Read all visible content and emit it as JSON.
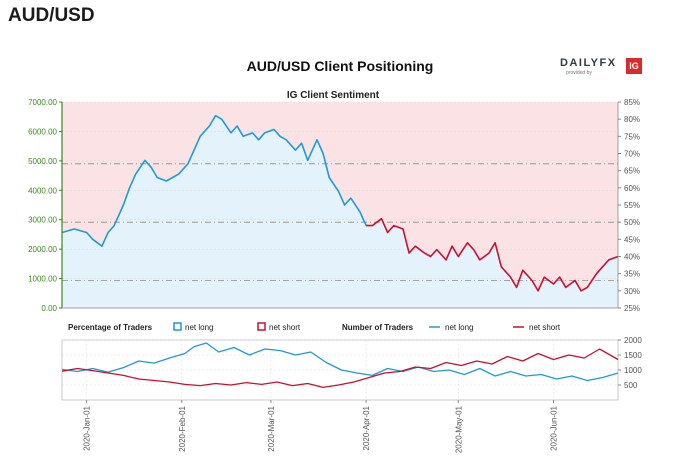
{
  "header": {
    "title": "AUD/USD"
  },
  "card": {
    "title": "AUD/USD Client Positioning",
    "brand": {
      "word": "DAILYFX",
      "sub": "provided by",
      "ig": "IG"
    }
  },
  "legend": {
    "pct_title": "Percentage of Traders",
    "net_long": "net long",
    "net_short": "net short",
    "num_title": "Number of Traders"
  },
  "colors": {
    "long": "#1f9ad6",
    "short": "#c8102e",
    "long_fill": "#e4f3fb",
    "short_fill": "#fbe2e4",
    "price_axis": "#3a8a1e"
  },
  "chart_data": [
    {
      "type": "line",
      "title": "IG Client Sentiment",
      "x_start": "2019-12-24",
      "x_end": "2020-06-22",
      "left_axis": {
        "ylim": [
          0,
          7000
        ],
        "ticks": [
          "0.00",
          "1000.00",
          "2000.00",
          "3000.00",
          "4000.00",
          "5000.00",
          "6000.00",
          "7000.00"
        ]
      },
      "right_axis": {
        "ylim": [
          25,
          85
        ],
        "ticks": [
          "25%",
          "30%",
          "35%",
          "40%",
          "45%",
          "50%",
          "55%",
          "60%",
          "65%",
          "70%",
          "75%",
          "80%",
          "85%"
        ]
      },
      "reference_lines": [
        33,
        50,
        67
      ],
      "series": [
        {
          "name": "net long",
          "color": "#1f9ad6",
          "points": [
            [
              "2019-12-24",
              47
            ],
            [
              "2019-12-28",
              48
            ],
            [
              "2020-01-01",
              47
            ],
            [
              "2020-01-03",
              45
            ],
            [
              "2020-01-06",
              43
            ],
            [
              "2020-01-08",
              47
            ],
            [
              "2020-01-10",
              49
            ],
            [
              "2020-01-13",
              55
            ],
            [
              "2020-01-15",
              60
            ],
            [
              "2020-01-17",
              64
            ],
            [
              "2020-01-20",
              68
            ],
            [
              "2020-01-22",
              66
            ],
            [
              "2020-01-24",
              63
            ],
            [
              "2020-01-27",
              62
            ],
            [
              "2020-01-29",
              63
            ],
            [
              "2020-01-31",
              64
            ],
            [
              "2020-02-03",
              67
            ],
            [
              "2020-02-05",
              71
            ],
            [
              "2020-02-07",
              75
            ],
            [
              "2020-02-10",
              78
            ],
            [
              "2020-02-12",
              81
            ],
            [
              "2020-02-14",
              80
            ],
            [
              "2020-02-17",
              76
            ],
            [
              "2020-02-19",
              78
            ],
            [
              "2020-02-21",
              75
            ],
            [
              "2020-02-24",
              76
            ],
            [
              "2020-02-26",
              74
            ],
            [
              "2020-02-28",
              76
            ],
            [
              "2020-03-02",
              77
            ],
            [
              "2020-03-04",
              75
            ],
            [
              "2020-03-06",
              74
            ],
            [
              "2020-03-09",
              71
            ],
            [
              "2020-03-11",
              73
            ],
            [
              "2020-03-13",
              68
            ],
            [
              "2020-03-16",
              74
            ],
            [
              "2020-03-18",
              70
            ],
            [
              "2020-03-20",
              63
            ],
            [
              "2020-03-23",
              59
            ],
            [
              "2020-03-25",
              55
            ],
            [
              "2020-03-27",
              57
            ],
            [
              "2020-03-30",
              53
            ],
            [
              "2020-04-01",
              49
            ]
          ]
        },
        {
          "name": "net short",
          "color": "#c8102e",
          "points": [
            [
              "2020-04-01",
              49
            ],
            [
              "2020-04-03",
              49
            ],
            [
              "2020-04-06",
              51
            ],
            [
              "2020-04-08",
              47
            ],
            [
              "2020-04-10",
              49
            ],
            [
              "2020-04-13",
              48
            ],
            [
              "2020-04-15",
              41
            ],
            [
              "2020-04-17",
              43
            ],
            [
              "2020-04-20",
              41
            ],
            [
              "2020-04-22",
              40
            ],
            [
              "2020-04-24",
              42
            ],
            [
              "2020-04-27",
              39
            ],
            [
              "2020-04-29",
              43
            ],
            [
              "2020-05-01",
              40
            ],
            [
              "2020-05-04",
              44
            ],
            [
              "2020-05-06",
              42
            ],
            [
              "2020-05-08",
              39
            ],
            [
              "2020-05-11",
              41
            ],
            [
              "2020-05-13",
              44
            ],
            [
              "2020-05-15",
              37
            ],
            [
              "2020-05-18",
              34
            ],
            [
              "2020-05-20",
              31
            ],
            [
              "2020-05-22",
              36
            ],
            [
              "2020-05-25",
              33
            ],
            [
              "2020-05-27",
              30
            ],
            [
              "2020-05-29",
              34
            ],
            [
              "2020-06-01",
              32
            ],
            [
              "2020-06-03",
              34
            ],
            [
              "2020-06-05",
              31
            ],
            [
              "2020-06-08",
              33
            ],
            [
              "2020-06-10",
              30
            ],
            [
              "2020-06-12",
              31
            ],
            [
              "2020-06-15",
              35
            ],
            [
              "2020-06-17",
              37
            ],
            [
              "2020-06-19",
              39
            ],
            [
              "2020-06-22",
              40
            ]
          ]
        }
      ]
    },
    {
      "type": "line",
      "title": "Number of Traders",
      "x_start": "2019-12-24",
      "x_end": "2020-06-22",
      "y_axis": {
        "ylim": [
          0,
          2000
        ],
        "ticks": [
          "500",
          "1000",
          "1500",
          "2000"
        ]
      },
      "x_ticks": [
        "2020-Jan-01",
        "2020-Feb-01",
        "2020-Mar-01",
        "2020-Apr-01",
        "2020-May-01",
        "2020-Jun-01"
      ],
      "series": [
        {
          "name": "net long",
          "color": "#1f9ad6",
          "points": [
            [
              "2019-12-24",
              1020
            ],
            [
              "2019-12-29",
              950
            ],
            [
              "2020-01-03",
              1050
            ],
            [
              "2020-01-08",
              930
            ],
            [
              "2020-01-13",
              1080
            ],
            [
              "2020-01-18",
              1300
            ],
            [
              "2020-01-23",
              1230
            ],
            [
              "2020-01-28",
              1400
            ],
            [
              "2020-02-02",
              1550
            ],
            [
              "2020-02-05",
              1780
            ],
            [
              "2020-02-09",
              1900
            ],
            [
              "2020-02-13",
              1600
            ],
            [
              "2020-02-18",
              1750
            ],
            [
              "2020-02-23",
              1500
            ],
            [
              "2020-02-28",
              1700
            ],
            [
              "2020-03-04",
              1650
            ],
            [
              "2020-03-09",
              1500
            ],
            [
              "2020-03-14",
              1600
            ],
            [
              "2020-03-19",
              1250
            ],
            [
              "2020-03-24",
              1000
            ],
            [
              "2020-03-29",
              900
            ],
            [
              "2020-04-03",
              820
            ],
            [
              "2020-04-08",
              1050
            ],
            [
              "2020-04-13",
              950
            ],
            [
              "2020-04-18",
              1100
            ],
            [
              "2020-04-23",
              950
            ],
            [
              "2020-04-28",
              1000
            ],
            [
              "2020-05-03",
              850
            ],
            [
              "2020-05-08",
              1050
            ],
            [
              "2020-05-13",
              800
            ],
            [
              "2020-05-18",
              950
            ],
            [
              "2020-05-23",
              800
            ],
            [
              "2020-05-28",
              850
            ],
            [
              "2020-06-02",
              700
            ],
            [
              "2020-06-07",
              800
            ],
            [
              "2020-06-12",
              650
            ],
            [
              "2020-06-17",
              750
            ],
            [
              "2020-06-22",
              900
            ]
          ]
        },
        {
          "name": "net short",
          "color": "#c8102e",
          "points": [
            [
              "2019-12-24",
              960
            ],
            [
              "2019-12-29",
              1050
            ],
            [
              "2020-01-03",
              980
            ],
            [
              "2020-01-08",
              900
            ],
            [
              "2020-01-13",
              820
            ],
            [
              "2020-01-18",
              700
            ],
            [
              "2020-01-23",
              650
            ],
            [
              "2020-01-28",
              600
            ],
            [
              "2020-02-02",
              520
            ],
            [
              "2020-02-07",
              480
            ],
            [
              "2020-02-12",
              550
            ],
            [
              "2020-02-17",
              500
            ],
            [
              "2020-02-22",
              580
            ],
            [
              "2020-02-27",
              520
            ],
            [
              "2020-03-03",
              600
            ],
            [
              "2020-03-08",
              480
            ],
            [
              "2020-03-13",
              550
            ],
            [
              "2020-03-18",
              420
            ],
            [
              "2020-03-23",
              500
            ],
            [
              "2020-03-28",
              600
            ],
            [
              "2020-04-02",
              750
            ],
            [
              "2020-04-07",
              900
            ],
            [
              "2020-04-12",
              950
            ],
            [
              "2020-04-17",
              1100
            ],
            [
              "2020-04-22",
              1050
            ],
            [
              "2020-04-27",
              1250
            ],
            [
              "2020-05-02",
              1150
            ],
            [
              "2020-05-07",
              1300
            ],
            [
              "2020-05-12",
              1200
            ],
            [
              "2020-05-17",
              1450
            ],
            [
              "2020-05-22",
              1300
            ],
            [
              "2020-05-27",
              1550
            ],
            [
              "2020-06-01",
              1350
            ],
            [
              "2020-06-06",
              1500
            ],
            [
              "2020-06-11",
              1400
            ],
            [
              "2020-06-16",
              1700
            ],
            [
              "2020-06-22",
              1350
            ]
          ]
        }
      ]
    }
  ]
}
